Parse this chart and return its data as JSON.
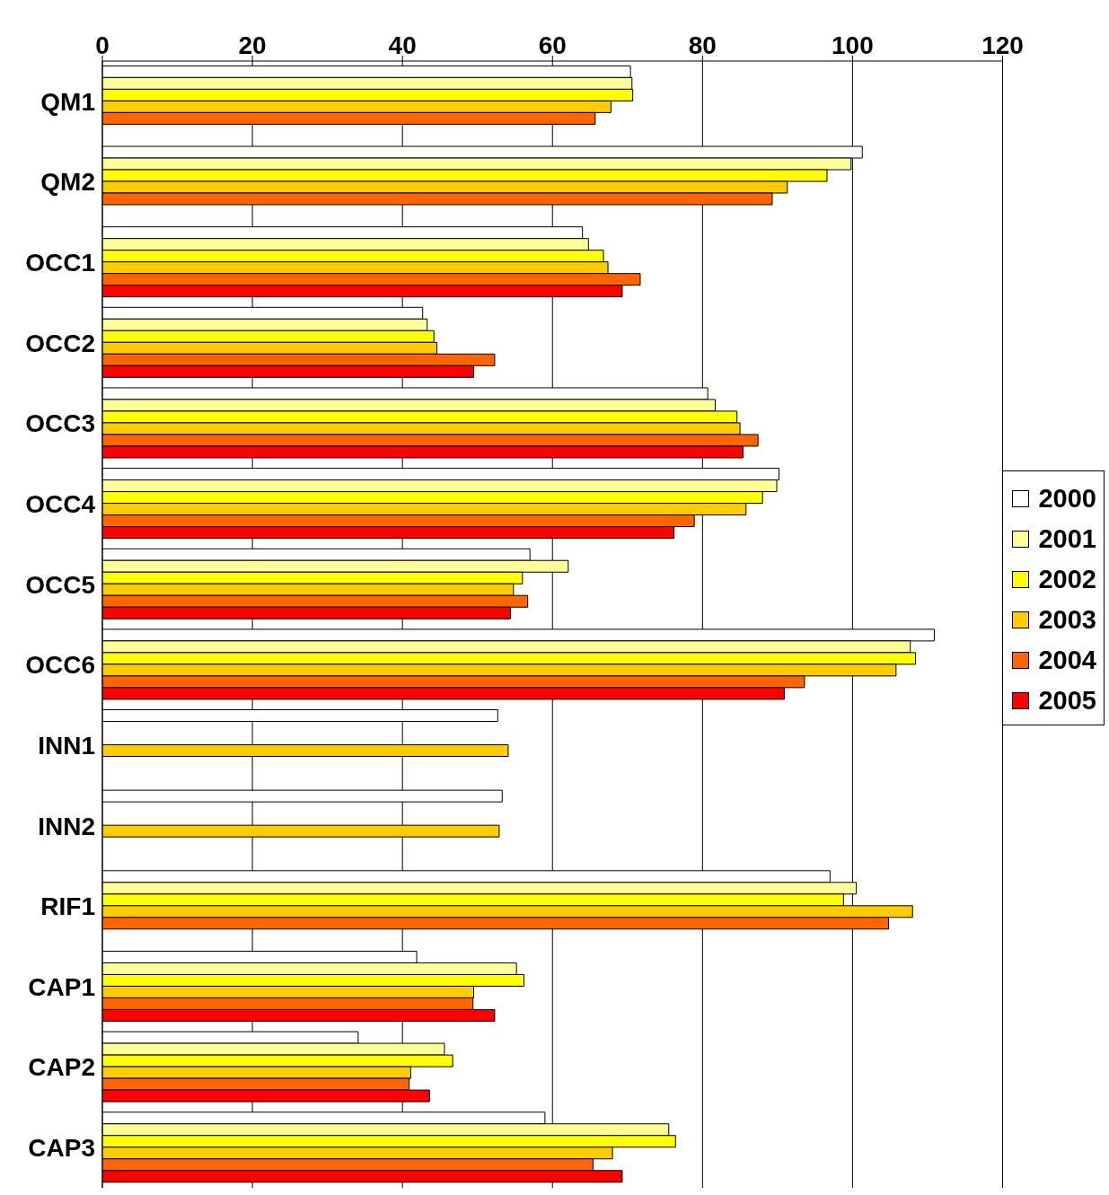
{
  "chart_data": {
    "type": "bar",
    "orientation": "horizontal",
    "categories": [
      "QM1",
      "QM2",
      "OCC1",
      "OCC2",
      "OCC3",
      "OCC4",
      "OCC5",
      "OCC6",
      "INN1",
      "INN2",
      "RIF1",
      "CAP1",
      "CAP2",
      "CAP3"
    ],
    "series": [
      {
        "name": "2000",
        "color": "#ffffff",
        "values": [
          70.4,
          101.3,
          64.0,
          42.7,
          80.7,
          90.2,
          57.0,
          110.9,
          52.7,
          53.3,
          97.0,
          41.9,
          34.1,
          59.0
        ]
      },
      {
        "name": "2001",
        "color": "#ffff99",
        "values": [
          70.6,
          99.8,
          64.8,
          43.3,
          81.7,
          89.9,
          62.1,
          107.7,
          null,
          null,
          100.5,
          55.2,
          45.6,
          75.5
        ]
      },
      {
        "name": "2002",
        "color": "#ffff00",
        "values": [
          70.7,
          96.6,
          66.8,
          44.2,
          84.6,
          88.0,
          56.0,
          108.4,
          null,
          null,
          98.8,
          56.2,
          46.7,
          76.4
        ]
      },
      {
        "name": "2003",
        "color": "#ffcc00",
        "values": [
          67.8,
          91.3,
          67.4,
          44.6,
          85.0,
          85.8,
          54.8,
          105.8,
          54.1,
          52.9,
          108.0,
          49.5,
          41.1,
          68.0
        ]
      },
      {
        "name": "2004",
        "color": "#ff6600",
        "values": [
          65.7,
          89.3,
          71.7,
          52.3,
          87.4,
          78.9,
          56.7,
          93.6,
          null,
          null,
          104.8,
          49.4,
          40.9,
          65.4
        ]
      },
      {
        "name": "2005",
        "color": "#ff0000",
        "values": [
          null,
          null,
          69.3,
          49.5,
          85.4,
          76.2,
          54.4,
          90.9,
          null,
          null,
          null,
          52.3,
          43.6,
          69.3
        ]
      }
    ],
    "xlim": [
      0,
      120
    ],
    "xticks": [
      0,
      20,
      40,
      60,
      80,
      100,
      120
    ],
    "grid": "x",
    "legend": "right"
  }
}
